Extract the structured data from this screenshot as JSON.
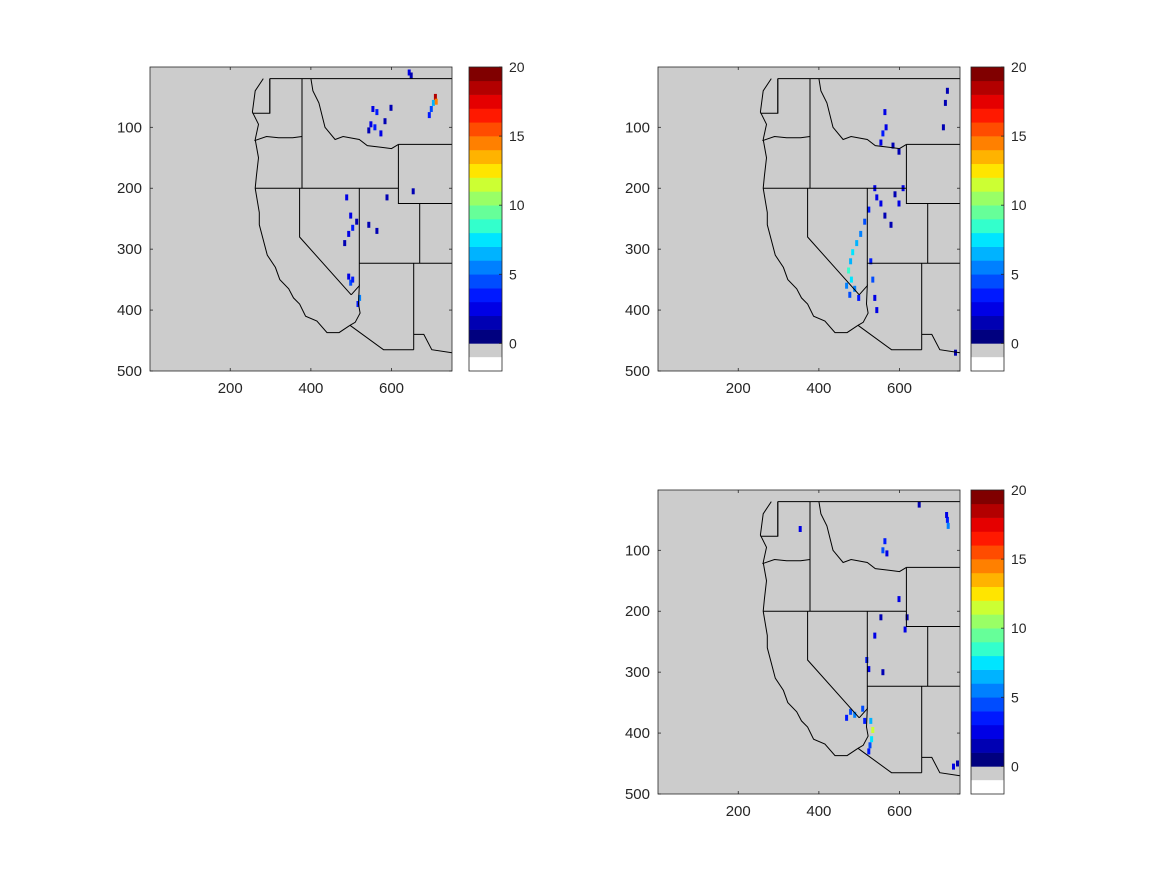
{
  "colorbar": {
    "ticks": [
      {
        "value": 0,
        "label": "0"
      },
      {
        "value": 5,
        "label": "5"
      },
      {
        "value": 10,
        "label": "10"
      },
      {
        "value": 15,
        "label": "15"
      },
      {
        "value": 20,
        "label": "20"
      }
    ],
    "gray_below_zero": "#cccccc",
    "bottom_swatch": "#ffffff",
    "colors": [
      "#00007f",
      "#0000b3",
      "#0000e5",
      "#0019ff",
      "#004cff",
      "#0080ff",
      "#00b3ff",
      "#00e5ff",
      "#33ffcc",
      "#66ff99",
      "#99ff66",
      "#ccff33",
      "#ffe500",
      "#ffb300",
      "#ff8000",
      "#ff4c00",
      "#ff1900",
      "#e50000",
      "#b30000",
      "#800000"
    ]
  },
  "map": {
    "background": "#cccccc",
    "border_color": "#000000"
  },
  "chart_data": [
    {
      "type": "heatmap",
      "panel": "top-left",
      "xticks": [
        {
          "value": 200,
          "label": "200"
        },
        {
          "value": 400,
          "label": "400"
        },
        {
          "value": 600,
          "label": "600"
        }
      ],
      "yticks": [
        {
          "value": 100,
          "label": "100"
        },
        {
          "value": 200,
          "label": "200"
        },
        {
          "value": 300,
          "label": "300"
        },
        {
          "value": 400,
          "label": "400"
        },
        {
          "value": 500,
          "label": "500"
        }
      ],
      "xlim": [
        1,
        750
      ],
      "ylim": [
        1,
        500
      ],
      "y_reversed": true,
      "clim": [
        -2,
        20
      ],
      "cells": [
        {
          "x": 645,
          "y": 10,
          "v": 2
        },
        {
          "x": 650,
          "y": 15,
          "v": 1
        },
        {
          "x": 555,
          "y": 70,
          "v": 2
        },
        {
          "x": 565,
          "y": 75,
          "v": 3
        },
        {
          "x": 550,
          "y": 95,
          "v": 2
        },
        {
          "x": 560,
          "y": 100,
          "v": 3
        },
        {
          "x": 545,
          "y": 105,
          "v": 1
        },
        {
          "x": 575,
          "y": 110,
          "v": 2
        },
        {
          "x": 585,
          "y": 90,
          "v": 1
        },
        {
          "x": 600,
          "y": 68,
          "v": 1
        },
        {
          "x": 700,
          "y": 70,
          "v": 4
        },
        {
          "x": 705,
          "y": 60,
          "v": 6
        },
        {
          "x": 710,
          "y": 50,
          "v": 18
        },
        {
          "x": 712,
          "y": 58,
          "v": 14
        },
        {
          "x": 695,
          "y": 80,
          "v": 3
        },
        {
          "x": 490,
          "y": 215,
          "v": 2
        },
        {
          "x": 500,
          "y": 245,
          "v": 2
        },
        {
          "x": 505,
          "y": 265,
          "v": 3
        },
        {
          "x": 495,
          "y": 275,
          "v": 2
        },
        {
          "x": 485,
          "y": 290,
          "v": 1
        },
        {
          "x": 515,
          "y": 255,
          "v": 1
        },
        {
          "x": 545,
          "y": 260,
          "v": 1
        },
        {
          "x": 565,
          "y": 270,
          "v": 1
        },
        {
          "x": 590,
          "y": 215,
          "v": 1
        },
        {
          "x": 655,
          "y": 205,
          "v": 1
        },
        {
          "x": 500,
          "y": 355,
          "v": 4
        },
        {
          "x": 505,
          "y": 350,
          "v": 3
        },
        {
          "x": 495,
          "y": 345,
          "v": 2
        },
        {
          "x": 522,
          "y": 380,
          "v": 5
        },
        {
          "x": 518,
          "y": 390,
          "v": 3
        }
      ]
    },
    {
      "type": "heatmap",
      "panel": "top-right",
      "xticks": [
        {
          "value": 200,
          "label": "200"
        },
        {
          "value": 400,
          "label": "400"
        },
        {
          "value": 600,
          "label": "600"
        }
      ],
      "yticks": [
        {
          "value": 100,
          "label": "100"
        },
        {
          "value": 200,
          "label": "200"
        },
        {
          "value": 300,
          "label": "300"
        },
        {
          "value": 400,
          "label": "400"
        },
        {
          "value": 500,
          "label": "500"
        }
      ],
      "xlim": [
        1,
        750
      ],
      "ylim": [
        1,
        500
      ],
      "y_reversed": true,
      "clim": [
        -2,
        20
      ],
      "cells": [
        {
          "x": 720,
          "y": 40,
          "v": 1
        },
        {
          "x": 715,
          "y": 60,
          "v": 1
        },
        {
          "x": 710,
          "y": 100,
          "v": 1
        },
        {
          "x": 565,
          "y": 75,
          "v": 2
        },
        {
          "x": 568,
          "y": 100,
          "v": 2
        },
        {
          "x": 560,
          "y": 110,
          "v": 3
        },
        {
          "x": 555,
          "y": 125,
          "v": 2
        },
        {
          "x": 585,
          "y": 130,
          "v": 1
        },
        {
          "x": 600,
          "y": 140,
          "v": 1
        },
        {
          "x": 540,
          "y": 200,
          "v": 2
        },
        {
          "x": 545,
          "y": 215,
          "v": 2
        },
        {
          "x": 525,
          "y": 235,
          "v": 3
        },
        {
          "x": 515,
          "y": 255,
          "v": 4
        },
        {
          "x": 505,
          "y": 275,
          "v": 5
        },
        {
          "x": 495,
          "y": 290,
          "v": 6
        },
        {
          "x": 485,
          "y": 305,
          "v": 7
        },
        {
          "x": 480,
          "y": 320,
          "v": 6
        },
        {
          "x": 475,
          "y": 335,
          "v": 8
        },
        {
          "x": 482,
          "y": 350,
          "v": 7
        },
        {
          "x": 490,
          "y": 365,
          "v": 5
        },
        {
          "x": 500,
          "y": 380,
          "v": 3
        },
        {
          "x": 470,
          "y": 360,
          "v": 5
        },
        {
          "x": 478,
          "y": 375,
          "v": 4
        },
        {
          "x": 555,
          "y": 225,
          "v": 2
        },
        {
          "x": 565,
          "y": 245,
          "v": 1
        },
        {
          "x": 580,
          "y": 260,
          "v": 1
        },
        {
          "x": 600,
          "y": 225,
          "v": 2
        },
        {
          "x": 610,
          "y": 200,
          "v": 2
        },
        {
          "x": 590,
          "y": 210,
          "v": 1
        },
        {
          "x": 530,
          "y": 320,
          "v": 3
        },
        {
          "x": 535,
          "y": 350,
          "v": 4
        },
        {
          "x": 540,
          "y": 380,
          "v": 2
        },
        {
          "x": 545,
          "y": 400,
          "v": 2
        },
        {
          "x": 740,
          "y": 470,
          "v": 1
        }
      ]
    },
    {
      "type": "heatmap",
      "panel": "bottom-right",
      "xticks": [
        {
          "value": 200,
          "label": "200"
        },
        {
          "value": 400,
          "label": "400"
        },
        {
          "value": 600,
          "label": "600"
        }
      ],
      "yticks": [
        {
          "value": 100,
          "label": "100"
        },
        {
          "value": 200,
          "label": "200"
        },
        {
          "value": 300,
          "label": "300"
        },
        {
          "value": 400,
          "label": "400"
        },
        {
          "value": 500,
          "label": "500"
        }
      ],
      "xlim": [
        1,
        750
      ],
      "ylim": [
        1,
        500
      ],
      "y_reversed": true,
      "clim": [
        -2,
        20
      ],
      "cells": [
        {
          "x": 720,
          "y": 50,
          "v": 3
        },
        {
          "x": 722,
          "y": 60,
          "v": 5
        },
        {
          "x": 718,
          "y": 42,
          "v": 2
        },
        {
          "x": 565,
          "y": 85,
          "v": 3
        },
        {
          "x": 560,
          "y": 100,
          "v": 4
        },
        {
          "x": 570,
          "y": 105,
          "v": 2
        },
        {
          "x": 355,
          "y": 65,
          "v": 2
        },
        {
          "x": 650,
          "y": 25,
          "v": 1
        },
        {
          "x": 600,
          "y": 180,
          "v": 2
        },
        {
          "x": 620,
          "y": 210,
          "v": 1
        },
        {
          "x": 615,
          "y": 230,
          "v": 2
        },
        {
          "x": 555,
          "y": 210,
          "v": 1
        },
        {
          "x": 540,
          "y": 240,
          "v": 2
        },
        {
          "x": 520,
          "y": 280,
          "v": 3
        },
        {
          "x": 525,
          "y": 295,
          "v": 2
        },
        {
          "x": 480,
          "y": 365,
          "v": 4
        },
        {
          "x": 470,
          "y": 375,
          "v": 3
        },
        {
          "x": 490,
          "y": 370,
          "v": 5
        },
        {
          "x": 510,
          "y": 360,
          "v": 4
        },
        {
          "x": 515,
          "y": 380,
          "v": 3
        },
        {
          "x": 530,
          "y": 380,
          "v": 6
        },
        {
          "x": 535,
          "y": 395,
          "v": 11
        },
        {
          "x": 532,
          "y": 410,
          "v": 7
        },
        {
          "x": 528,
          "y": 420,
          "v": 4
        },
        {
          "x": 525,
          "y": 430,
          "v": 3
        },
        {
          "x": 560,
          "y": 300,
          "v": 1
        },
        {
          "x": 735,
          "y": 455,
          "v": 2
        },
        {
          "x": 745,
          "y": 450,
          "v": 1
        }
      ]
    }
  ]
}
